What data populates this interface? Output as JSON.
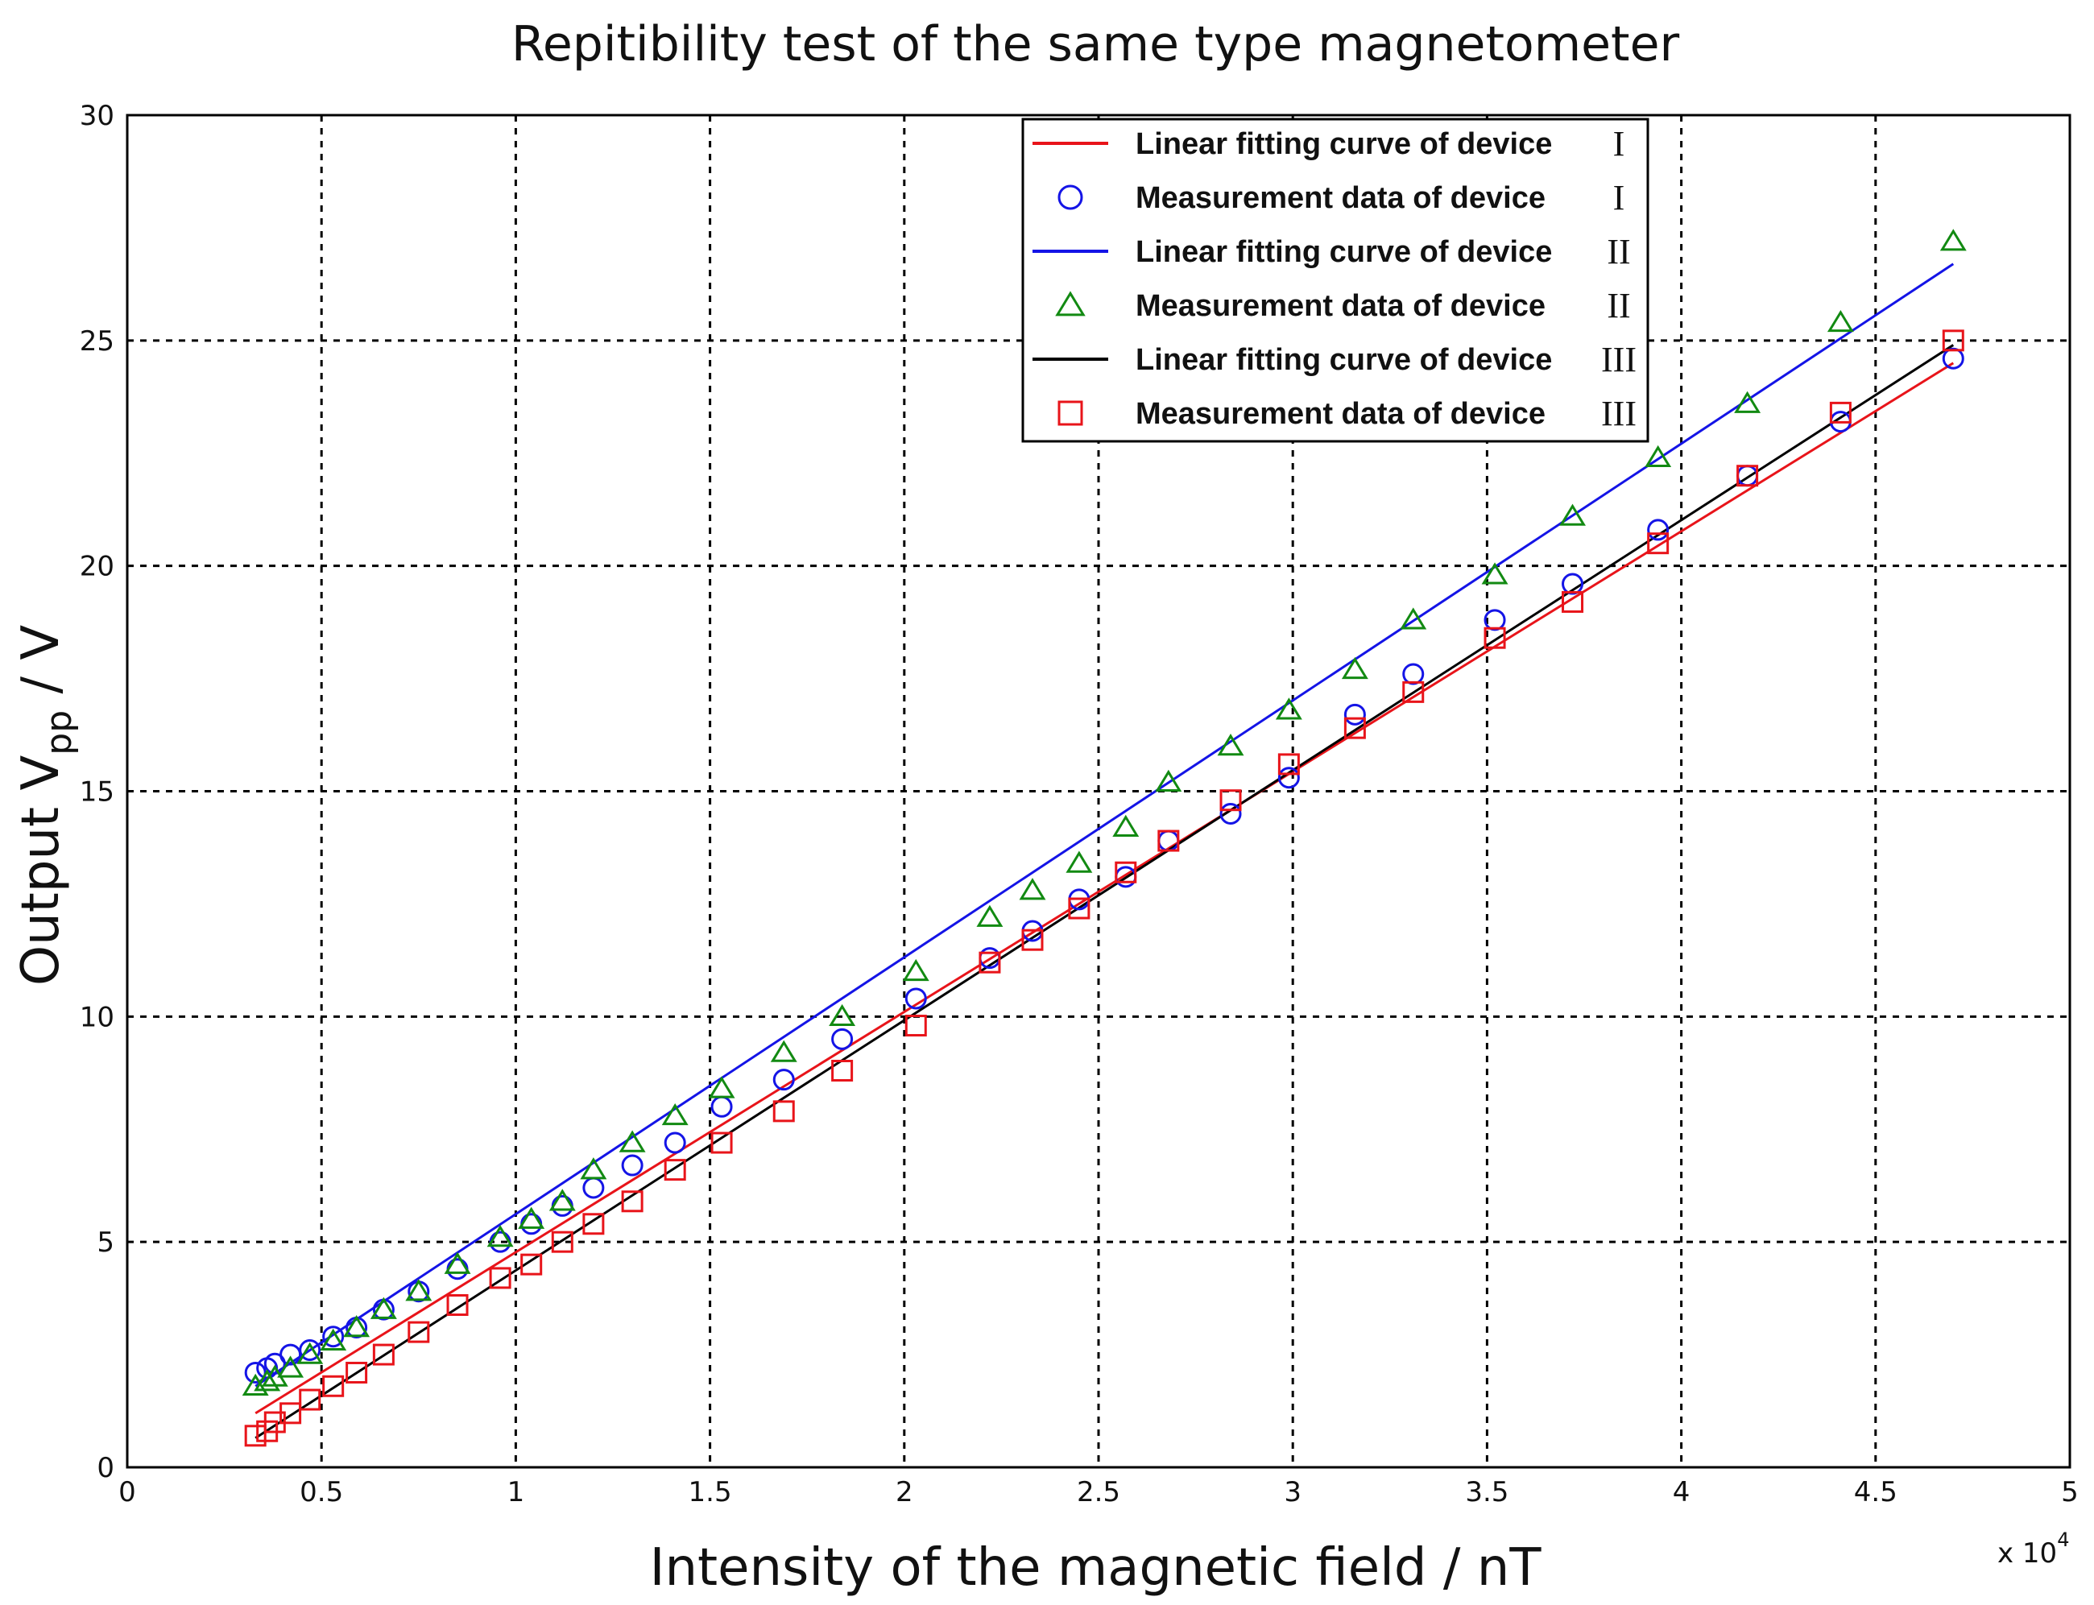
{
  "chart_data": {
    "type": "line",
    "title": "Repitibility test of the same type magnetometer",
    "xlabel": "Intensity of the magnetic field / nT",
    "ylabel": {
      "main": "Output V",
      "sub": "pp",
      "unit": " / V"
    },
    "x_multiplier_label": {
      "base": "x 10",
      "exp": "4"
    },
    "xlim": [
      0,
      5
    ],
    "ylim": [
      0,
      30
    ],
    "x_ticks": [
      0,
      0.5,
      1,
      1.5,
      2,
      2.5,
      3,
      3.5,
      4,
      4.5,
      5
    ],
    "x_tick_labels": [
      "0",
      "0.5",
      "1",
      "1.5",
      "2",
      "2.5",
      "3",
      "3.5",
      "4",
      "4.5",
      "5"
    ],
    "y_ticks": [
      0,
      5,
      10,
      15,
      20,
      25,
      30
    ],
    "y_tick_labels": [
      "0",
      "5",
      "10",
      "15",
      "20",
      "25",
      "30"
    ],
    "grid": true,
    "legend_position": "top-right",
    "colors": {
      "red": "#e8141a",
      "blue": "#1414e6",
      "black": "#000000",
      "green": "#128a12"
    },
    "legend": [
      {
        "label": "Linear fitting curve of device",
        "roman": "I",
        "symbol": "line",
        "color": "#e8141a"
      },
      {
        "label": "Measurement data of device",
        "roman": "I",
        "symbol": "circle",
        "color": "#1414e6"
      },
      {
        "label": "Linear fitting curve of device",
        "roman": "II",
        "symbol": "line",
        "color": "#1414e6"
      },
      {
        "label": "Measurement data of device",
        "roman": "II",
        "symbol": "triangle",
        "color": "#128a12"
      },
      {
        "label": "Linear fitting curve of device",
        "roman": "III",
        "symbol": "line",
        "color": "#000000"
      },
      {
        "label": "Measurement data of device",
        "roman": "III",
        "symbol": "square",
        "color": "#e8141a"
      }
    ],
    "x": [
      0.33,
      0.36,
      0.38,
      0.42,
      0.47,
      0.53,
      0.59,
      0.66,
      0.75,
      0.85,
      0.96,
      1.04,
      1.12,
      1.2,
      1.3,
      1.41,
      1.53,
      1.69,
      1.84,
      2.03,
      2.22,
      2.33,
      2.45,
      2.57,
      2.68,
      2.84,
      2.99,
      3.16,
      3.31,
      3.52,
      3.72,
      3.94,
      4.17,
      4.41,
      4.7
    ],
    "series": [
      {
        "name": "Measurement data of device I",
        "kind": "scatter",
        "marker": "circle",
        "color": "#1414e6",
        "values": [
          2.1,
          2.2,
          2.3,
          2.5,
          2.6,
          2.9,
          3.1,
          3.5,
          3.9,
          4.4,
          5.0,
          5.4,
          5.8,
          6.2,
          6.7,
          7.2,
          8.0,
          8.6,
          9.5,
          10.4,
          11.3,
          11.9,
          12.6,
          13.1,
          13.9,
          14.5,
          15.3,
          16.7,
          17.6,
          18.8,
          19.6,
          20.8,
          22.0,
          23.2,
          24.6
        ]
      },
      {
        "name": "Measurement data of device II",
        "kind": "scatter",
        "marker": "triangle",
        "color": "#128a12",
        "values": [
          1.8,
          1.9,
          2.0,
          2.2,
          2.5,
          2.8,
          3.1,
          3.5,
          3.9,
          4.5,
          5.1,
          5.5,
          5.9,
          6.6,
          7.2,
          7.8,
          8.4,
          9.2,
          10.0,
          11.0,
          12.2,
          12.8,
          13.4,
          14.2,
          15.2,
          16.0,
          16.8,
          17.7,
          18.8,
          19.8,
          21.1,
          22.4,
          23.6,
          25.4,
          27.2
        ]
      },
      {
        "name": "Measurement data of device III",
        "kind": "scatter",
        "marker": "square",
        "color": "#e8141a",
        "values": [
          0.7,
          0.8,
          1.0,
          1.2,
          1.5,
          1.8,
          2.1,
          2.5,
          3.0,
          3.6,
          4.2,
          4.5,
          5.0,
          5.4,
          5.9,
          6.6,
          7.2,
          7.9,
          8.8,
          9.8,
          11.2,
          11.7,
          12.4,
          13.2,
          13.9,
          14.8,
          15.6,
          16.4,
          17.2,
          18.4,
          19.2,
          20.5,
          22.0,
          23.4,
          25.0
        ]
      },
      {
        "name": "Linear fitting curve of device I",
        "kind": "line",
        "color": "#e8141a",
        "x_range": [
          0.33,
          4.7
        ],
        "y_range": [
          1.2,
          24.5
        ]
      },
      {
        "name": "Linear fitting curve of device II",
        "kind": "line",
        "color": "#1414e6",
        "x_range": [
          0.33,
          4.7
        ],
        "y_range": [
          1.8,
          26.7
        ]
      },
      {
        "name": "Linear fitting curve of device III",
        "kind": "line",
        "color": "#000000",
        "x_range": [
          0.33,
          4.7
        ],
        "y_range": [
          0.65,
          24.9
        ]
      }
    ]
  }
}
